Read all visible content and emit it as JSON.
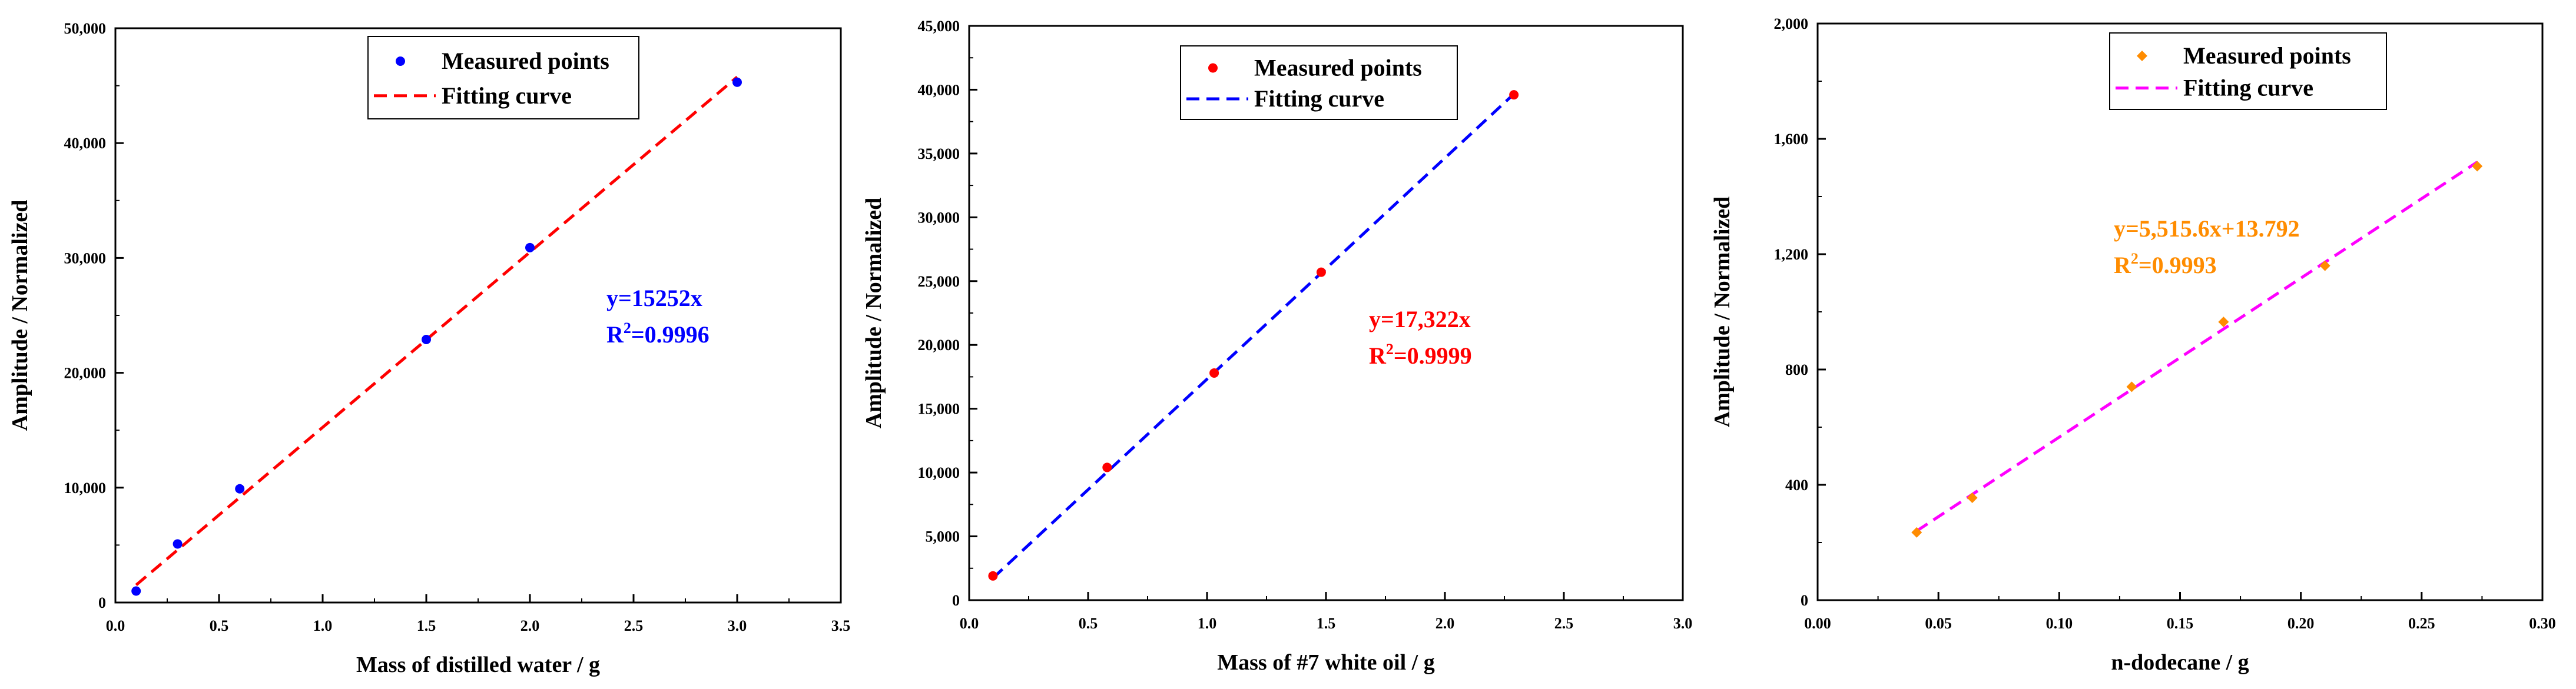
{
  "chart_data": [
    {
      "type": "scatter",
      "xlabel": "Mass of distilled water / g",
      "ylabel": "Amplitude / Normalized",
      "xlim": [
        0,
        3.5
      ],
      "ylim": [
        0,
        50000
      ],
      "x_ticks": [
        0,
        0.5,
        1.0,
        1.5,
        2.0,
        2.5,
        3.0,
        3.5
      ],
      "x_tick_labels": [
        "0.0",
        "0.5",
        "1.0",
        "1.5",
        "2.0",
        "2.5",
        "3.0",
        "3.5"
      ],
      "y_ticks": [
        0,
        10000,
        20000,
        30000,
        40000,
        50000
      ],
      "y_tick_labels": [
        "0",
        "10,000",
        "20,000",
        "30,000",
        "40,000",
        "50,000"
      ],
      "series": [
        {
          "name": "Measured points",
          "kind": "points",
          "color": "#0000ff",
          "x": [
            0.1,
            0.3,
            0.6,
            1.5,
            2.0,
            3.0
          ],
          "y": [
            1000,
            5100,
            9900,
            22900,
            30900,
            45300
          ]
        },
        {
          "name": "Fitting curve",
          "kind": "line",
          "color": "#ff0000",
          "slope": 15252,
          "intercept": 0,
          "x_range": [
            0.1,
            3.0
          ]
        }
      ],
      "legend": {
        "position": "top-center",
        "items": [
          "Measured points",
          "Fitting curve"
        ]
      },
      "equation": {
        "line1": "y=15252x",
        "r2_prefix": "R",
        "r2_sup": "2",
        "r2_value": "=0.9996",
        "color": "#0000ff"
      }
    },
    {
      "type": "scatter",
      "xlabel": "Mass of #7 white oil / g",
      "ylabel": "Amplitude / Normalized",
      "xlim": [
        0,
        3.0
      ],
      "ylim": [
        0,
        45000
      ],
      "x_ticks": [
        0,
        0.5,
        1.0,
        1.5,
        2.0,
        2.5,
        3.0
      ],
      "x_tick_labels": [
        "0.0",
        "0.5",
        "1.0",
        "1.5",
        "2.0",
        "2.5",
        "3.0"
      ],
      "y_ticks": [
        0,
        5000,
        10000,
        15000,
        20000,
        25000,
        30000,
        35000,
        40000,
        45000
      ],
      "y_tick_labels": [
        "0",
        "5,000",
        "10,000",
        "15,000",
        "20,000",
        "25,000",
        "30,000",
        "35,000",
        "40,000",
        "45,000"
      ],
      "series": [
        {
          "name": "Measured points",
          "kind": "points",
          "color": "#ff0000",
          "x": [
            0.1,
            0.58,
            1.03,
            1.48,
            2.29
          ],
          "y": [
            1900,
            10400,
            17800,
            25700,
            39600
          ]
        },
        {
          "name": "Fitting curve",
          "kind": "line",
          "color": "#0000ff",
          "slope": 17322,
          "intercept": 0,
          "x_range": [
            0.1,
            2.29
          ]
        }
      ],
      "legend": {
        "position": "top-center",
        "items": [
          "Measured points",
          "Fitting curve"
        ]
      },
      "equation": {
        "line1": "y=17,322x",
        "r2_prefix": "R",
        "r2_sup": "2",
        "r2_value": "=0.9999",
        "color": "#ff0000"
      }
    },
    {
      "type": "scatter",
      "xlabel": "n-dodecane / g",
      "ylabel": "Amplitude / Normalized",
      "xlim": [
        0,
        0.3
      ],
      "ylim": [
        0,
        2000
      ],
      "x_ticks": [
        0,
        0.05,
        0.1,
        0.15,
        0.2,
        0.25,
        0.3
      ],
      "x_tick_labels": [
        "0.00",
        "0.05",
        "0.10",
        "0.15",
        "0.20",
        "0.25",
        "0.30"
      ],
      "y_ticks": [
        0,
        400,
        800,
        1200,
        1600,
        2000
      ],
      "y_tick_labels": [
        "0",
        "400",
        "800",
        "1,200",
        "1,600",
        "2,000"
      ],
      "series": [
        {
          "name": "Measured points",
          "kind": "points",
          "color": "#ff8c00",
          "x": [
            0.041,
            0.064,
            0.13,
            0.168,
            0.21,
            0.273
          ],
          "y": [
            235,
            355,
            740,
            965,
            1160,
            1505
          ]
        },
        {
          "name": "Fitting curve",
          "kind": "line",
          "color": "#ff00ff",
          "slope": 5515.6,
          "intercept": 13.792,
          "x_range": [
            0.041,
            0.273
          ]
        }
      ],
      "legend": {
        "position": "top-center",
        "items": [
          "Measured points",
          "Fitting curve"
        ]
      },
      "equation": {
        "line1": "y=5,515.6x+13.792",
        "r2_prefix": "R",
        "r2_sup": "2",
        "r2_value": "=0.9993",
        "color": "#ff8c00"
      }
    }
  ]
}
